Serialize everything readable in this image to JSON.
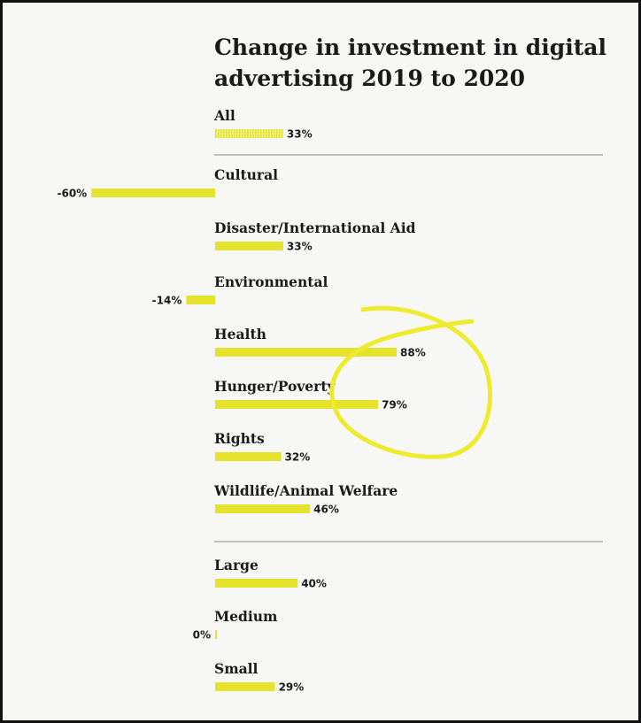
{
  "chart_data": {
    "type": "bar",
    "orientation": "horizontal",
    "title_lines": [
      "Change in investment in digital",
      "advertising 2019 to 2020"
    ],
    "groups": [
      {
        "items": [
          {
            "category": "All",
            "value": 33,
            "label": "33%",
            "pattern": "hatched"
          }
        ]
      },
      {
        "items": [
          {
            "category": "Cultural",
            "value": -60,
            "label": "-60%"
          },
          {
            "category": "Disaster/International Aid",
            "value": 33,
            "label": "33%"
          },
          {
            "category": "Environmental",
            "value": -14,
            "label": "-14%"
          },
          {
            "category": "Health",
            "value": 88,
            "label": "88%"
          },
          {
            "category": "Hunger/Poverty",
            "value": 79,
            "label": "79%"
          },
          {
            "category": "Rights",
            "value": 32,
            "label": "32%"
          },
          {
            "category": "Wildlife/Animal Welfare",
            "value": 46,
            "label": "46%"
          }
        ]
      },
      {
        "items": [
          {
            "category": "Large",
            "value": 40,
            "label": "40%"
          },
          {
            "category": "Medium",
            "value": 0,
            "label": "0%"
          },
          {
            "category": "Small",
            "value": 29,
            "label": "29%"
          }
        ]
      }
    ],
    "unit": "%",
    "xlim": [
      -100,
      100
    ],
    "grid": false,
    "bar_color": "#e4e22a",
    "annotation": {
      "type": "hand-drawn-circle",
      "color": "#eeeb2e",
      "around": [
        "Health",
        "Hunger/Poverty"
      ]
    }
  }
}
